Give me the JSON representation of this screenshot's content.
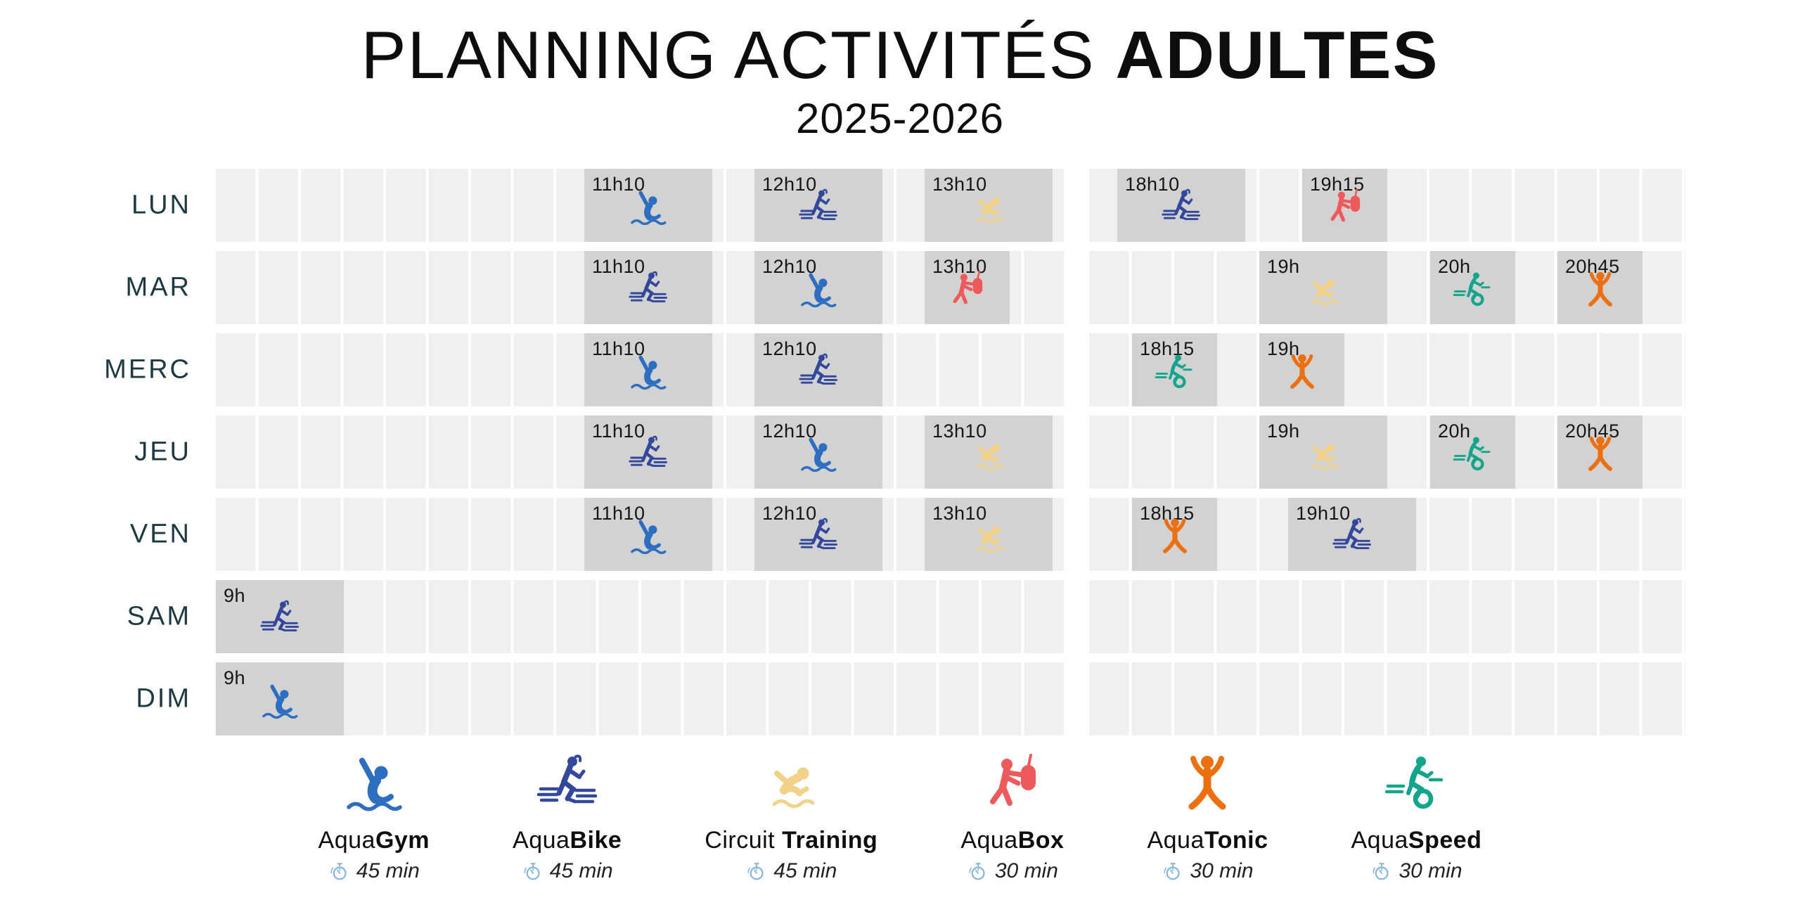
{
  "title": {
    "main_regular": "PLANNING ACTIVITÉS ",
    "main_bold": "ADULTES",
    "season": "2025-2026"
  },
  "activities": [
    {
      "id": "aquagym",
      "name_regular": "Aqua",
      "name_bold": "Gym",
      "duration_label": "45 min",
      "duration_min": 45,
      "color": "#2e6ec0"
    },
    {
      "id": "aquabike",
      "name_regular": "Aqua",
      "name_bold": "Bike",
      "duration_label": "45 min",
      "duration_min": 45,
      "color": "#33489b"
    },
    {
      "id": "circuit",
      "name_regular": "Circuit ",
      "name_bold": "Training",
      "duration_label": "45 min",
      "duration_min": 45,
      "color": "#f2d288"
    },
    {
      "id": "aquabox",
      "name_regular": "Aqua",
      "name_bold": "Box",
      "duration_label": "30 min",
      "duration_min": 30,
      "color": "#ee5a5b"
    },
    {
      "id": "aquatonic",
      "name_regular": "Aqua",
      "name_bold": "Tonic",
      "duration_label": "30 min",
      "duration_min": 30,
      "color": "#ec7010"
    },
    {
      "id": "aquaspeed",
      "name_regular": "Aqua",
      "name_bold": "Speed",
      "duration_label": "30 min",
      "duration_min": 30,
      "color": "#13a58c"
    }
  ],
  "stopwatch_color": "#85b4dd",
  "days": [
    {
      "label": "LUN",
      "sessions": [
        {
          "time": "11h10",
          "activity": "aquagym"
        },
        {
          "time": "12h10",
          "activity": "aquabike"
        },
        {
          "time": "13h10",
          "activity": "circuit"
        },
        {
          "time": "18h10",
          "activity": "aquabike"
        },
        {
          "time": "19h15",
          "activity": "aquabox"
        }
      ]
    },
    {
      "label": "MAR",
      "sessions": [
        {
          "time": "11h10",
          "activity": "aquabike"
        },
        {
          "time": "12h10",
          "activity": "aquagym"
        },
        {
          "time": "13h10",
          "activity": "aquabox"
        },
        {
          "time": "19h",
          "activity": "circuit"
        },
        {
          "time": "20h",
          "activity": "aquaspeed"
        },
        {
          "time": "20h45",
          "activity": "aquatonic"
        }
      ]
    },
    {
      "label": "MERC",
      "sessions": [
        {
          "time": "11h10",
          "activity": "aquagym"
        },
        {
          "time": "12h10",
          "activity": "aquabike"
        },
        {
          "time": "18h15",
          "activity": "aquaspeed"
        },
        {
          "time": "19h",
          "activity": "aquatonic"
        }
      ]
    },
    {
      "label": "JEU",
      "sessions": [
        {
          "time": "11h10",
          "activity": "aquabike"
        },
        {
          "time": "12h10",
          "activity": "aquagym"
        },
        {
          "time": "13h10",
          "activity": "circuit"
        },
        {
          "time": "19h",
          "activity": "circuit"
        },
        {
          "time": "20h",
          "activity": "aquaspeed"
        },
        {
          "time": "20h45",
          "activity": "aquatonic"
        }
      ]
    },
    {
      "label": "VEN",
      "sessions": [
        {
          "time": "11h10",
          "activity": "aquagym"
        },
        {
          "time": "12h10",
          "activity": "aquabike"
        },
        {
          "time": "13h10",
          "activity": "circuit"
        },
        {
          "time": "18h15",
          "activity": "aquatonic"
        },
        {
          "time": "19h10",
          "activity": "aquabike"
        }
      ]
    },
    {
      "label": "SAM",
      "sessions": [
        {
          "time": "9h",
          "activity": "aquabike"
        }
      ]
    },
    {
      "label": "DIM",
      "sessions": [
        {
          "time": "9h",
          "activity": "aquagym"
        }
      ]
    }
  ]
}
